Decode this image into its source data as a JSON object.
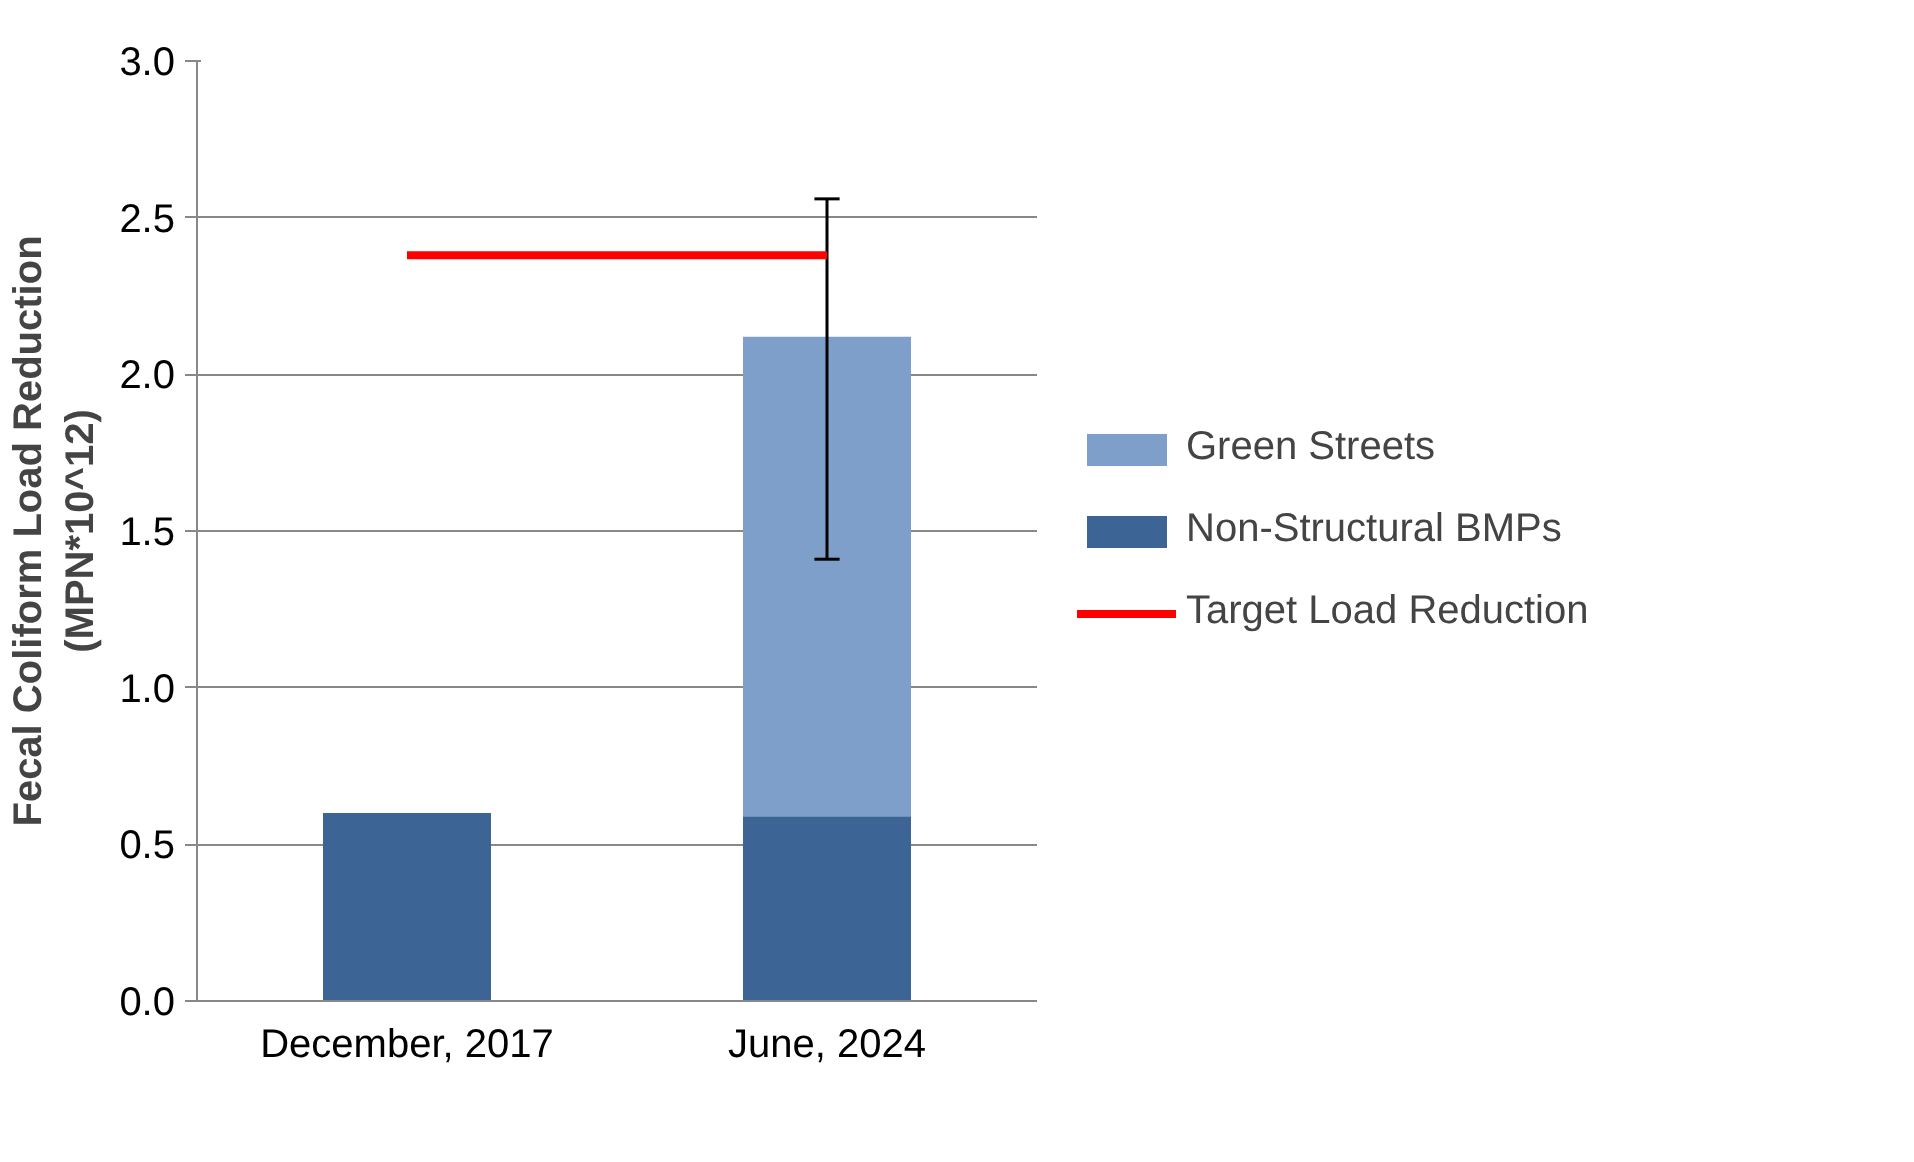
{
  "chart_data": {
    "type": "bar",
    "stacked": true,
    "ylabel": "Fecal Coliform Load Reduction\n(MPN*10^12)",
    "categories": [
      "December, 2017",
      "June, 2024"
    ],
    "ylim": [
      0,
      3
    ],
    "yticks": [
      {
        "value": 0,
        "label": "0.0"
      },
      {
        "value": 0.5,
        "label": "0.5"
      },
      {
        "value": 1,
        "label": "1.0"
      },
      {
        "value": 1.5,
        "label": "1.5"
      },
      {
        "value": 2,
        "label": "2.0"
      },
      {
        "value": 2.5,
        "label": "2.5"
      },
      {
        "value": 3,
        "label": "3.0"
      }
    ],
    "grid": "y",
    "legend": "right",
    "series": [
      {
        "name": "Non-Structural BMPs",
        "color": "#3c6595",
        "values": [
          0.6,
          0.59
        ]
      },
      {
        "name": "Green Streets",
        "color": "#7f9fcb",
        "values": [
          null,
          1.53
        ],
        "errors": [
          null,
          [
            1.41,
            2.56
          ]
        ]
      },
      {
        "name": "Target Load Reduction",
        "type": "line",
        "color": "#ff0000",
        "values": [
          2.38,
          2.38
        ]
      }
    ]
  }
}
